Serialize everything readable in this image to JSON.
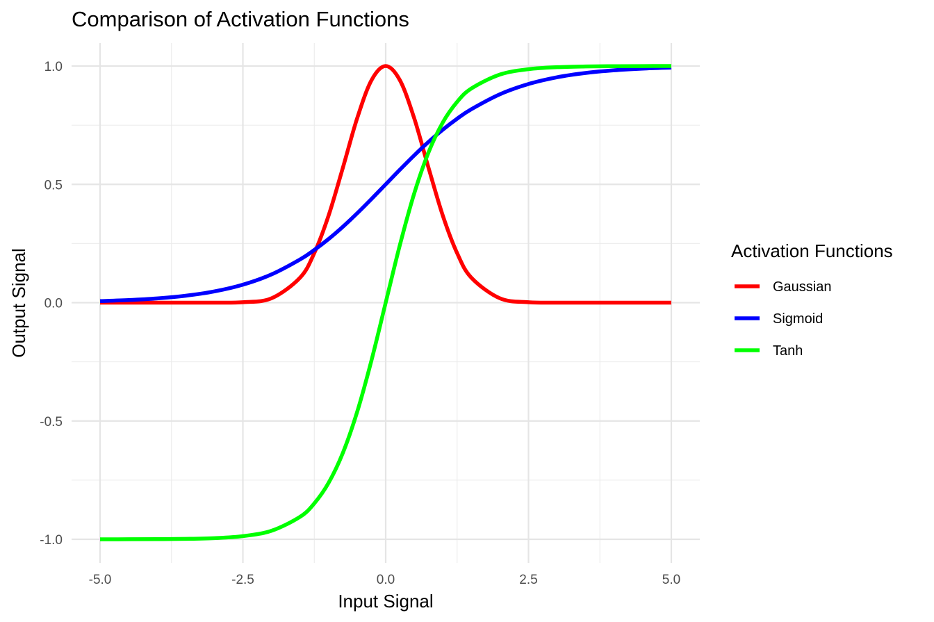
{
  "chart_data": {
    "type": "line",
    "title": "Comparison of Activation Functions",
    "xlabel": "Input Signal",
    "ylabel": "Output Signal",
    "xlim": [
      -5.0,
      5.0
    ],
    "ylim": [
      -1.0,
      1.0
    ],
    "x_ticks": [
      "-5.0",
      "-2.5",
      "0.0",
      "2.5",
      "5.0"
    ],
    "y_ticks": [
      "-1.0",
      "-0.5",
      "0.0",
      "0.5",
      "1.0"
    ],
    "grid": true,
    "legend": {
      "title": "Activation Functions",
      "placement": "right"
    },
    "x": [
      -5.0,
      -4.5,
      -4.0,
      -3.5,
      -3.0,
      -2.5,
      -2.0,
      -1.5,
      -1.25,
      -1.0,
      -0.75,
      -0.5,
      -0.25,
      0.0,
      0.25,
      0.5,
      0.75,
      1.0,
      1.25,
      1.5,
      2.0,
      2.5,
      3.0,
      3.5,
      4.0,
      4.5,
      5.0
    ],
    "series": [
      {
        "name": "Gaussian",
        "color": "#ff0000",
        "values": [
          0.0,
          0.0,
          0.0,
          0.0,
          0.0001,
          0.0019,
          0.0183,
          0.1054,
          0.2096,
          0.3679,
          0.5698,
          0.7788,
          0.9394,
          1.0,
          0.9394,
          0.7788,
          0.5698,
          0.3679,
          0.2096,
          0.1054,
          0.0183,
          0.0019,
          0.0001,
          0.0,
          0.0,
          0.0,
          0.0
        ]
      },
      {
        "name": "Sigmoid",
        "color": "#0000ff",
        "values": [
          0.0067,
          0.011,
          0.018,
          0.0293,
          0.0474,
          0.0759,
          0.1192,
          0.1824,
          0.2227,
          0.2689,
          0.3208,
          0.3775,
          0.4378,
          0.5,
          0.5622,
          0.6225,
          0.6792,
          0.7311,
          0.7773,
          0.8176,
          0.8808,
          0.9241,
          0.9526,
          0.9707,
          0.982,
          0.989,
          0.9933
        ]
      },
      {
        "name": "Tanh",
        "color": "#00ff00",
        "values": [
          -0.9999,
          -0.9998,
          -0.9993,
          -0.9982,
          -0.9951,
          -0.9866,
          -0.964,
          -0.9051,
          -0.8483,
          -0.7616,
          -0.6351,
          -0.4621,
          -0.2449,
          0.0,
          0.2449,
          0.4621,
          0.6351,
          0.7616,
          0.8483,
          0.9051,
          0.964,
          0.9866,
          0.9951,
          0.9982,
          0.9993,
          0.9998,
          0.9999
        ]
      }
    ]
  }
}
